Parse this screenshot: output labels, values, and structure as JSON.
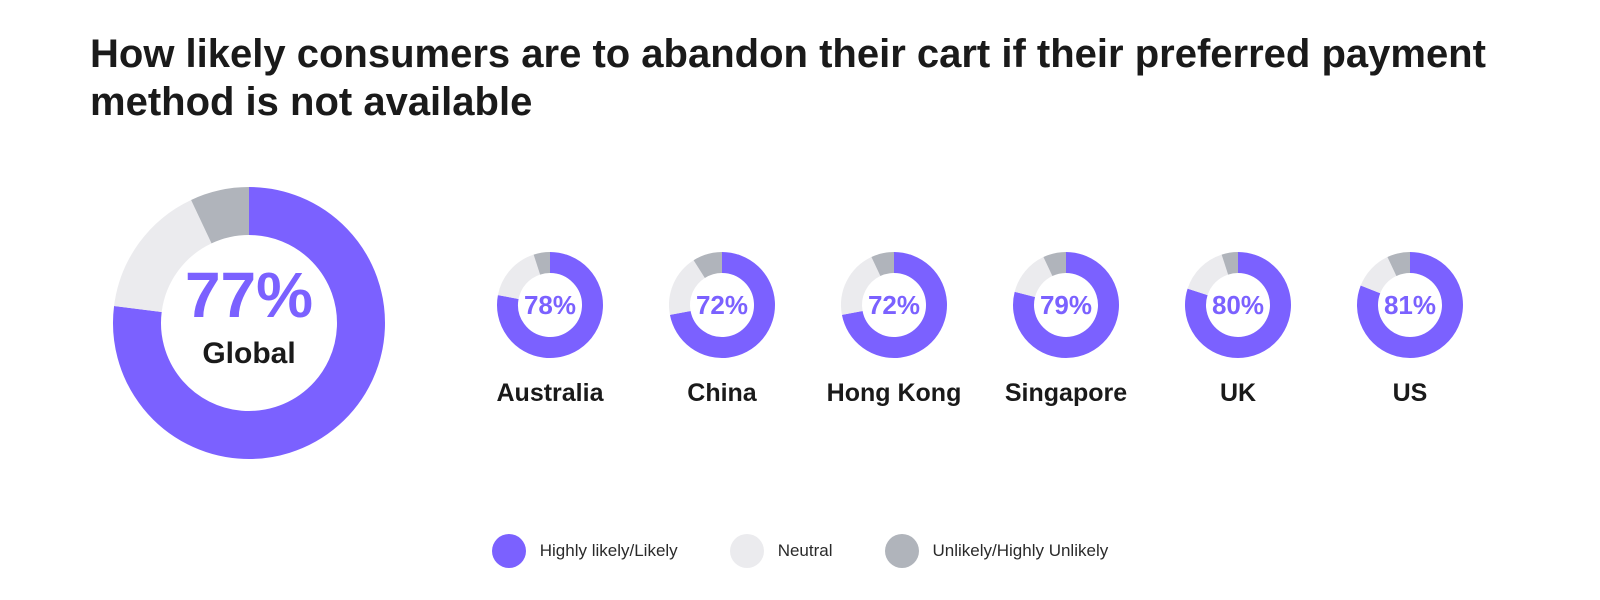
{
  "title": "How likely consumers are to abandon their cart if their preferred payment method is not available",
  "colors": {
    "likely": "#7b61ff",
    "neutral": "#ebebee",
    "unlikely": "#b0b4bb",
    "text": "#1a1a1a"
  },
  "legend": [
    {
      "label": "Highly likely/Likely",
      "color": "#7b61ff"
    },
    {
      "label": "Neutral",
      "color": "#ebebee"
    },
    {
      "label": "Unlikely/Highly Unlikely",
      "color": "#b0b4bb"
    }
  ],
  "chart_data": [
    {
      "type": "pie",
      "variant": "donut",
      "region": "Global",
      "label": "77%",
      "categories": [
        "Highly likely/Likely",
        "Neutral",
        "Unlikely/Highly Unlikely"
      ],
      "values": [
        77,
        16,
        7
      ]
    },
    {
      "type": "pie",
      "variant": "donut",
      "region": "Australia",
      "label": "78%",
      "categories": [
        "Highly likely/Likely",
        "Neutral",
        "Unlikely/Highly Unlikely"
      ],
      "values": [
        78,
        17,
        5
      ]
    },
    {
      "type": "pie",
      "variant": "donut",
      "region": "China",
      "label": "72%",
      "categories": [
        "Highly likely/Likely",
        "Neutral",
        "Unlikely/Highly Unlikely"
      ],
      "values": [
        72,
        19,
        9
      ]
    },
    {
      "type": "pie",
      "variant": "donut",
      "region": "Hong Kong",
      "label": "72%",
      "categories": [
        "Highly likely/Likely",
        "Neutral",
        "Unlikely/Highly Unlikely"
      ],
      "values": [
        72,
        21,
        7
      ]
    },
    {
      "type": "pie",
      "variant": "donut",
      "region": "Singapore",
      "label": "79%",
      "categories": [
        "Highly likely/Likely",
        "Neutral",
        "Unlikely/Highly Unlikely"
      ],
      "values": [
        79,
        14,
        7
      ]
    },
    {
      "type": "pie",
      "variant": "donut",
      "region": "UK",
      "label": "80%",
      "categories": [
        "Highly likely/Likely",
        "Neutral",
        "Unlikely/Highly Unlikely"
      ],
      "values": [
        80,
        15,
        5
      ]
    },
    {
      "type": "pie",
      "variant": "donut",
      "region": "US",
      "label": "81%",
      "categories": [
        "Highly likely/Likely",
        "Neutral",
        "Unlikely/Highly Unlikely"
      ],
      "values": [
        81,
        12,
        7
      ]
    }
  ]
}
